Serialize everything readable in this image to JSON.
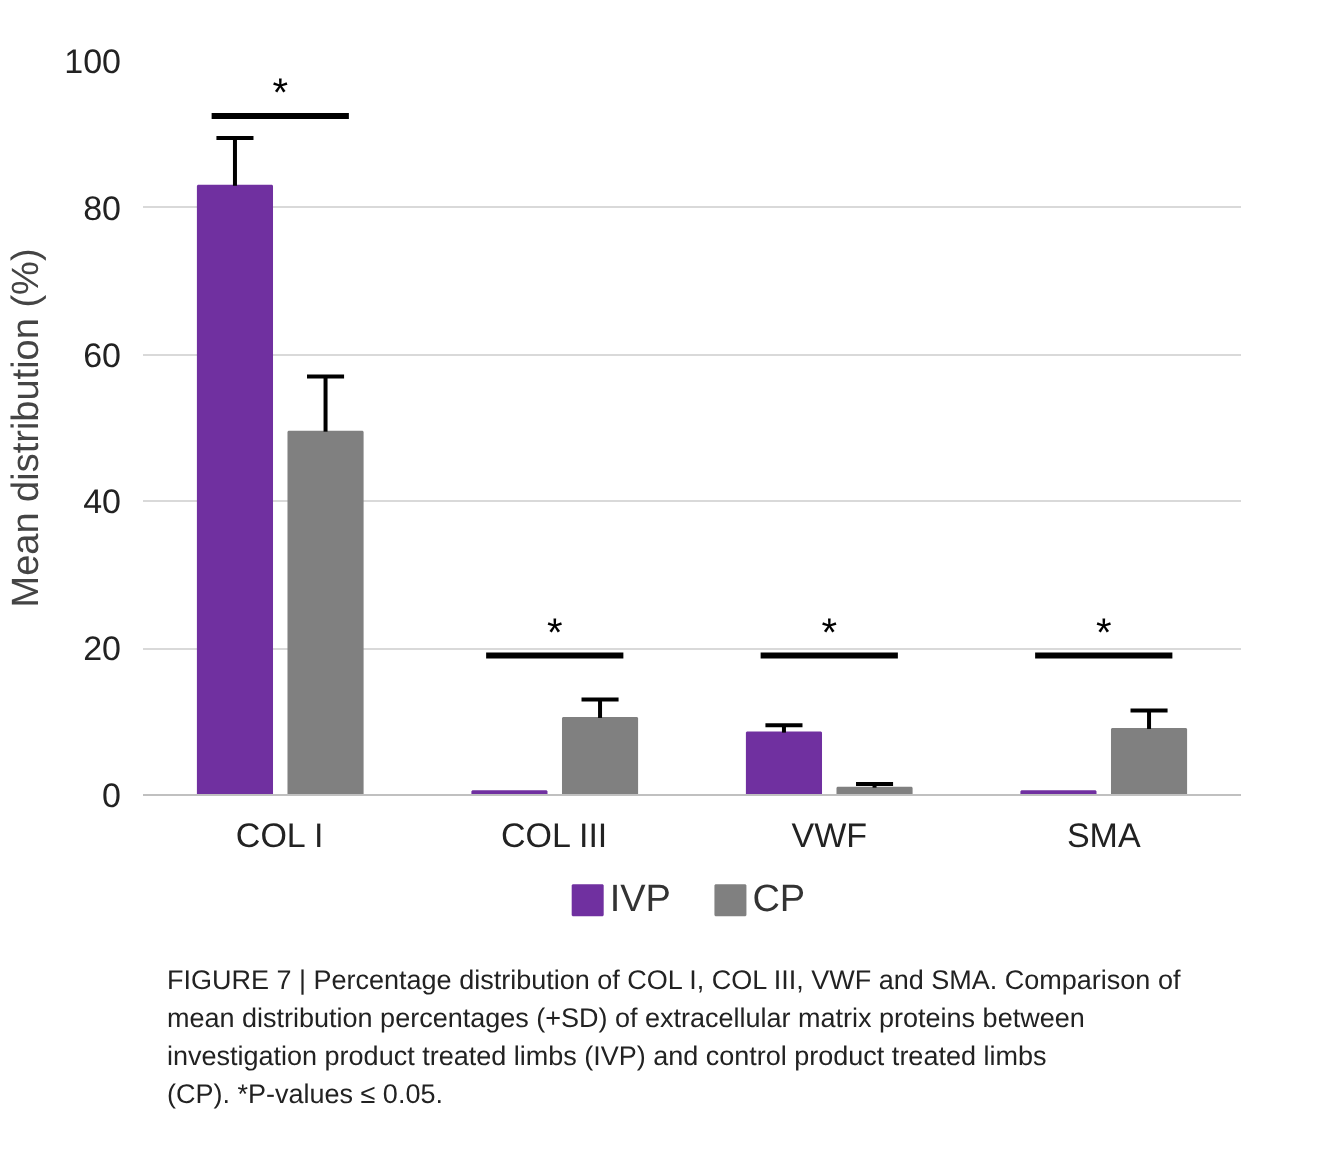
{
  "chart_data": {
    "type": "bar",
    "ylabel": "Mean distribution (%)",
    "categories": [
      "COL I",
      "COL III",
      "VWF",
      "SMA"
    ],
    "ylim": [
      0,
      100
    ],
    "yticks": [
      0,
      20,
      40,
      60,
      80,
      100
    ],
    "grid": "y",
    "legend": "bottom",
    "series": [
      {
        "name": "IVP",
        "color": "#7030a0",
        "values": [
          83,
          0.5,
          8.5,
          0.5
        ],
        "errors": [
          [
            83,
            89.5
          ],
          null,
          [
            8.5,
            9.5
          ],
          null
        ]
      },
      {
        "name": "CP",
        "color": "#808080",
        "values": [
          49.5,
          10.5,
          1,
          9
        ],
        "errors": [
          [
            49.5,
            57
          ],
          [
            10.5,
            13
          ],
          [
            1,
            1.5
          ],
          [
            9,
            11.5
          ]
        ]
      }
    ],
    "annotations": [
      "*",
      "*",
      "*",
      "*",
      "FIGURE 7 | Percentage distribution of COL I, COL III, VWF and SMA. Comparison of mean distribution percentages (+SD) of extracellular matrix proteins between investigation product treated limbs (IVP) and control product treated limbs (CP). *P-values ≤ 0.05."
    ]
  }
}
